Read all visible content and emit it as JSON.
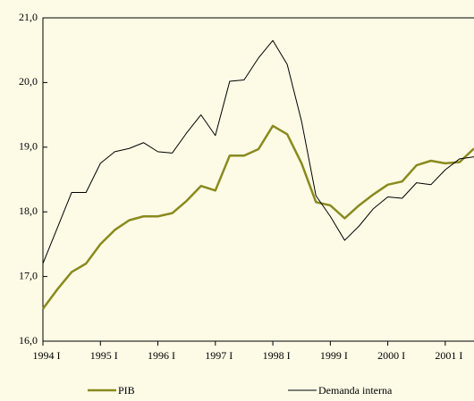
{
  "chart_data": {
    "type": "line",
    "categories": [
      "1994 I",
      null,
      null,
      null,
      "1995 I",
      null,
      null,
      null,
      "1996 I",
      null,
      null,
      null,
      "1997 I",
      null,
      null,
      null,
      "1998 I",
      null,
      null,
      null,
      "1999 I",
      null,
      null,
      null,
      "2000 I",
      null,
      null,
      null,
      "2001 I",
      null,
      null
    ],
    "series": [
      {
        "name": "PIB",
        "color": "#8a8a1e",
        "width": 2.5,
        "values": [
          16.5,
          16.8,
          17.07,
          17.2,
          17.5,
          17.72,
          17.87,
          17.93,
          17.93,
          17.98,
          18.17,
          18.4,
          18.33,
          18.87,
          18.87,
          18.97,
          19.33,
          19.2,
          18.75,
          18.15,
          18.1,
          17.9,
          18.1,
          18.27,
          18.42,
          18.47,
          18.72,
          18.79,
          18.75,
          18.77,
          18.98
        ]
      },
      {
        "name": "Demanda interna",
        "color": "#000000",
        "width": 1,
        "values": [
          17.2,
          17.75,
          18.3,
          18.3,
          18.75,
          18.93,
          18.98,
          19.07,
          18.93,
          18.91,
          19.22,
          19.5,
          19.18,
          20.02,
          20.04,
          20.38,
          20.65,
          20.28,
          19.4,
          18.25,
          17.93,
          17.56,
          17.78,
          18.05,
          18.23,
          18.21,
          18.45,
          18.42,
          18.65,
          18.82,
          18.85
        ]
      }
    ],
    "ylim": [
      16,
      21
    ],
    "yticks": [
      {
        "value": 16,
        "label": "16,0"
      },
      {
        "value": 17,
        "label": "17,0"
      },
      {
        "value": 18,
        "label": "18,0"
      },
      {
        "value": 19,
        "label": "19,0"
      },
      {
        "value": 20,
        "label": "20,0"
      },
      {
        "value": 21,
        "label": "21,0"
      }
    ],
    "legend": "bottom"
  }
}
